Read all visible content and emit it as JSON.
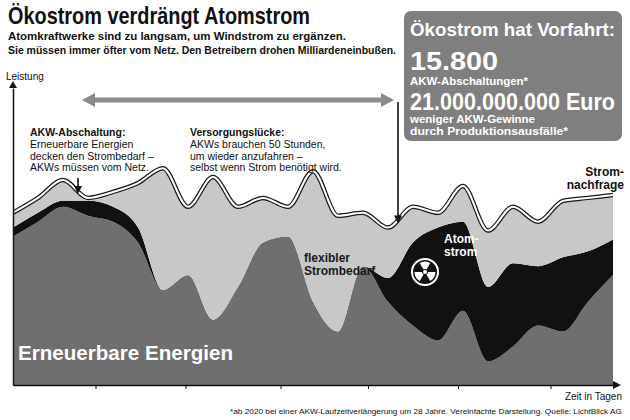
{
  "chart_data": {
    "type": "area",
    "title": "Ökostrom verdrängt Atomstrom",
    "subtitle": [
      "Atomkraftwerke sind zu langsam, um Windstrom zu ergänzen.",
      "Sie müssen immer öfter vom Netz. Den Betreibern drohen Milliardeneinbußen."
    ],
    "x_label": "Zeit in Tagen",
    "y_label": "Leistung",
    "x": [
      0,
      1,
      2,
      3,
      4,
      5,
      6,
      7,
      8,
      9,
      10,
      11,
      12,
      13,
      14,
      15,
      16,
      17,
      18,
      19,
      20,
      21,
      22,
      23,
      24
    ],
    "xlim": [
      0,
      24
    ],
    "ylim": [
      0,
      100
    ],
    "xticks": [
      3.3,
      6.9,
      10.7,
      14.2,
      17.8,
      21.5
    ],
    "yticks": [],
    "tick_labels": false,
    "stacked": true,
    "grid": false,
    "series": [
      {
        "name": "Erneuerbare Energien",
        "type": "area",
        "color": "#6f6f6f",
        "values": [
          50,
          55,
          60,
          57,
          55,
          48,
          32,
          37,
          22,
          33,
          48,
          50,
          28,
          18,
          40,
          28,
          20,
          15,
          25,
          8,
          13,
          20,
          18,
          28,
          37
        ]
      },
      {
        "name": "Atom-\nstrom",
        "type": "area",
        "color": "#111111",
        "values": [
          3,
          3,
          2,
          5,
          5,
          5,
          0,
          0,
          0,
          0,
          0,
          0,
          0,
          0,
          0,
          8,
          28,
          38,
          30,
          25,
          28,
          20,
          25,
          17,
          12
        ]
      },
      {
        "name": "flexibler\nStrombedarf",
        "type": "area",
        "color": "#c8c8c8",
        "values": [
          5,
          5,
          7,
          1,
          5,
          15,
          41,
          23,
          48,
          27,
          15,
          10,
          44,
          39,
          18,
          17,
          12,
          5,
          12,
          19,
          19,
          15,
          19,
          18,
          15
        ]
      },
      {
        "name": "Strom-\nnachfrage",
        "type": "line",
        "color": "#ffffff",
        "line_style": "solid",
        "values": [
          58,
          63,
          69,
          63,
          65,
          68,
          73,
          60,
          70,
          60,
          63,
          60,
          72,
          57,
          58,
          53,
          60,
          58,
          67,
          52,
          60,
          55,
          62,
          63,
          64
        ]
      }
    ],
    "annotations": [
      {
        "x": 2.6,
        "title": "AKW-Abschaltung:",
        "lines": [
          "Erneuerbare Energien",
          "decken den Strombedarf –",
          "AKWs müssen vom Netz."
        ]
      },
      {
        "x": 15.4,
        "title": "Versorgungslücke:",
        "lines": [
          "AKWs brauchen 50 Stunden,",
          "um wieder anzufahren –",
          "selbst wenn Strom benötigt wird."
        ]
      }
    ],
    "infobox": {
      "heading": "Ökostrom hat Vorfahrt:",
      "lines": [
        "15.800",
        "AKW-Abschaltungen*",
        "21.000.000.000 Euro",
        "weniger AKW-Gewinne",
        "durch Produktionsausfälle*"
      ]
    },
    "footnote": "*ab 2020 bei einer AKW-Laufzeitverlängerung um 28 Jahre. Vereinfachte Darstellung.  Quelle: LichtBlick AG"
  }
}
